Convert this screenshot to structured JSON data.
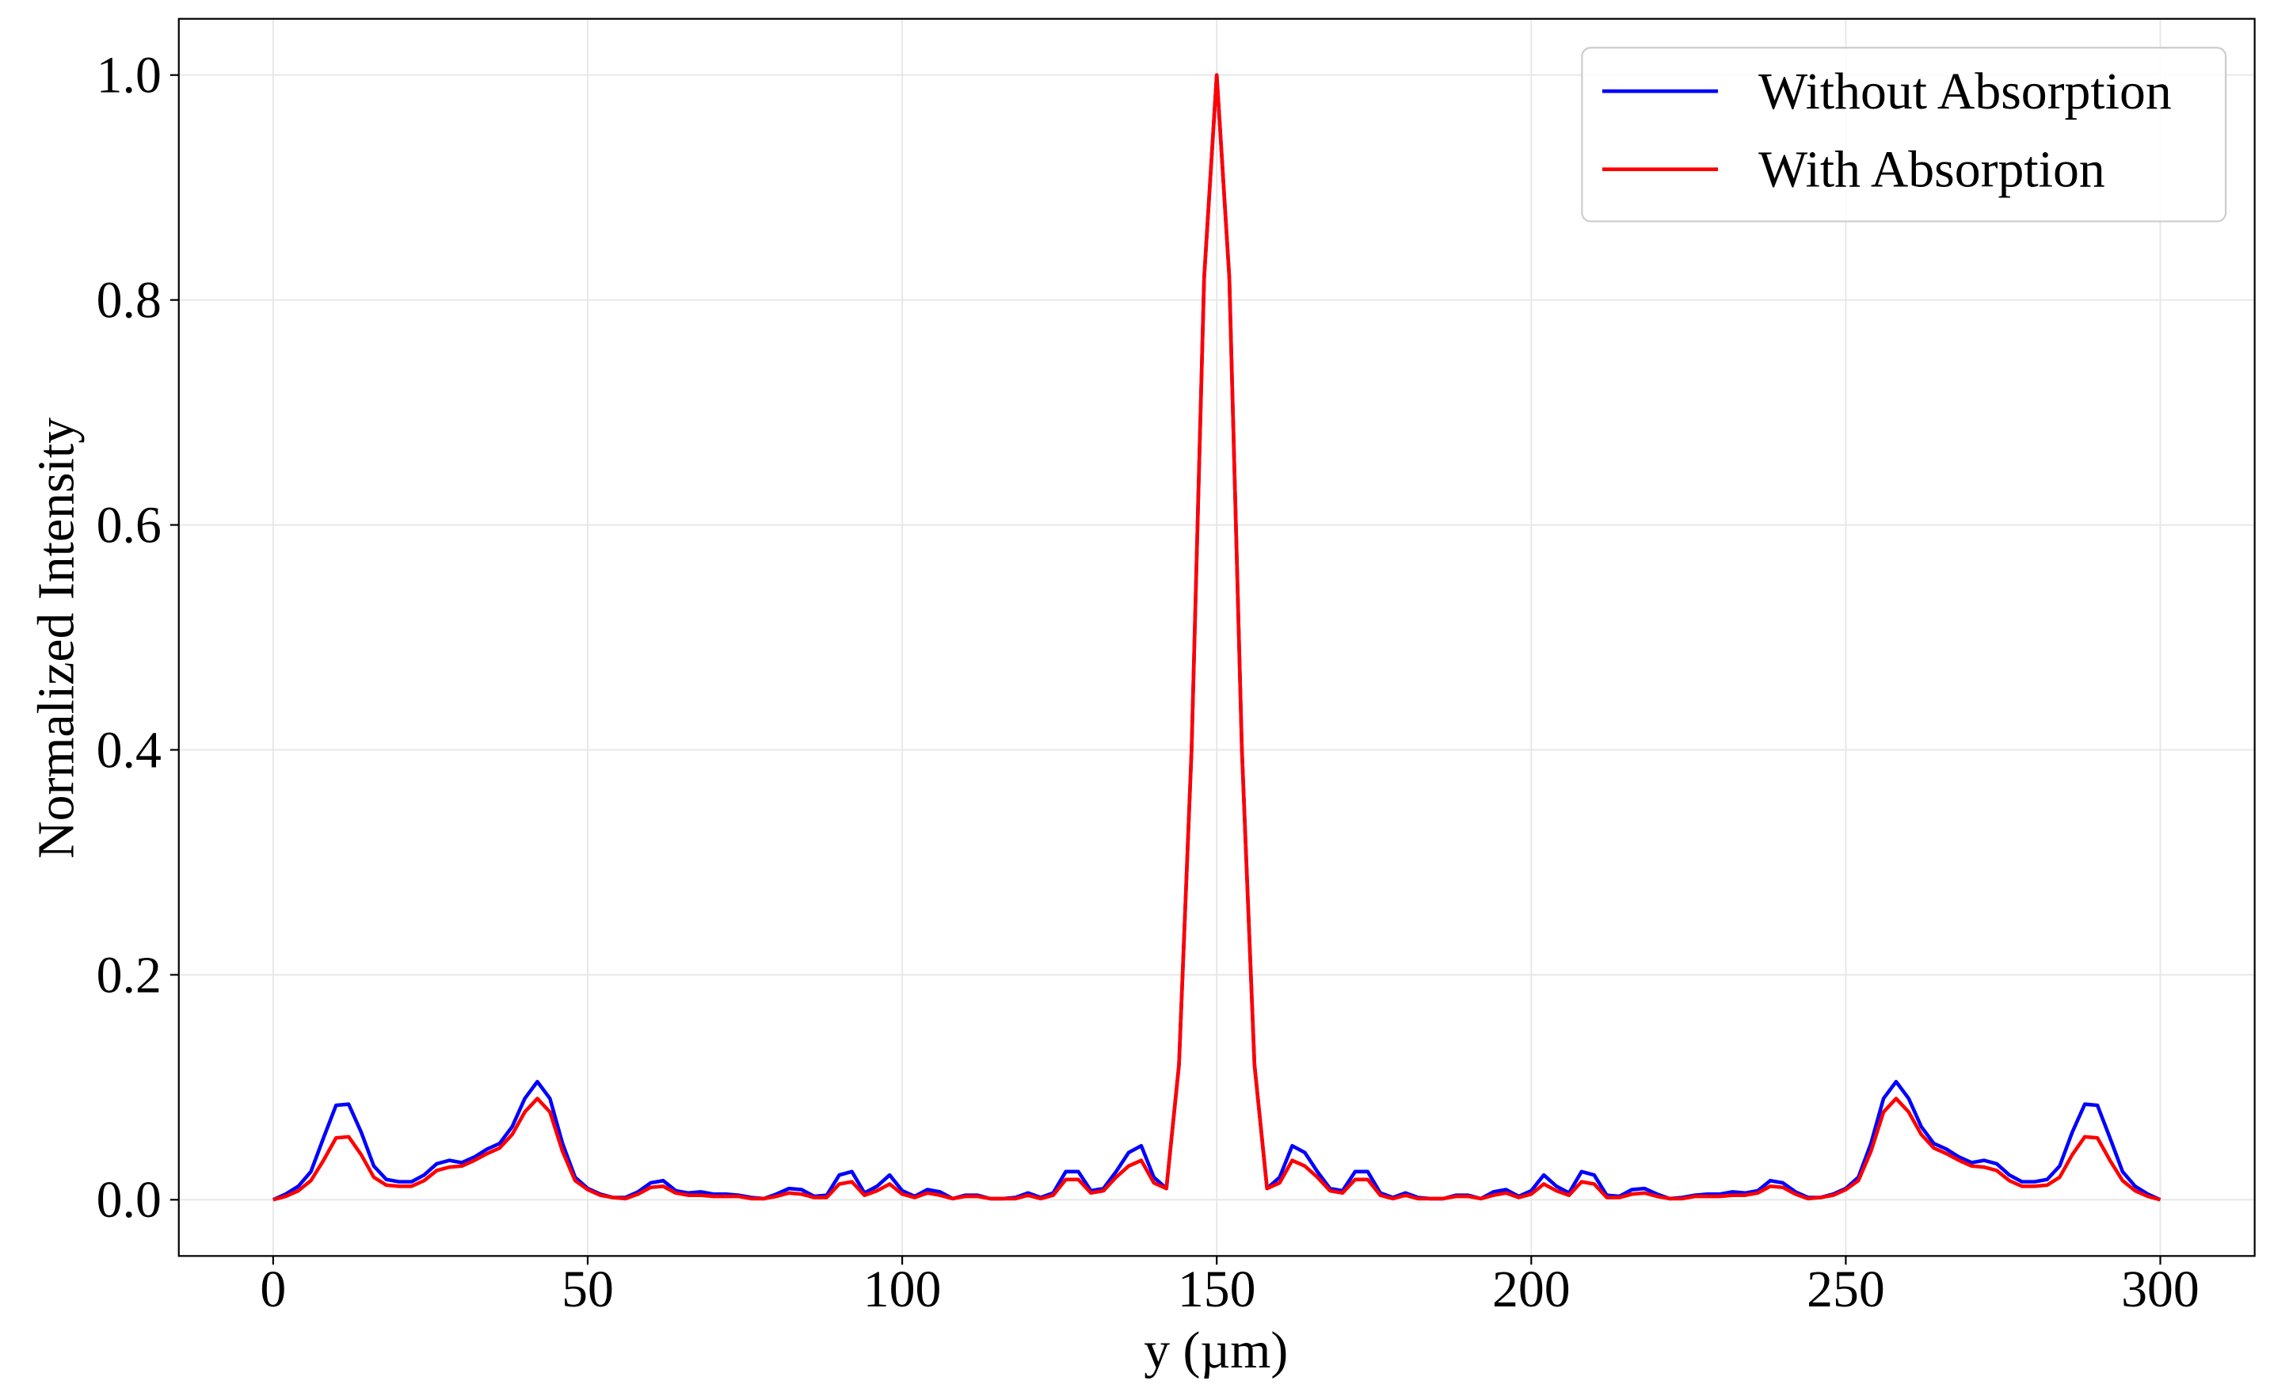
{
  "chart_data": {
    "type": "line",
    "xlabel": "y (µm)",
    "ylabel": "Normalized Intensity",
    "x": [
      0,
      2,
      4,
      6,
      8,
      10,
      12,
      14,
      16,
      18,
      20,
      22,
      24,
      26,
      28,
      30,
      32,
      34,
      36,
      38,
      40,
      42,
      44,
      46,
      48,
      50,
      52,
      54,
      56,
      58,
      60,
      62,
      64,
      66,
      68,
      70,
      72,
      74,
      76,
      78,
      80,
      82,
      84,
      86,
      88,
      90,
      92,
      94,
      96,
      98,
      100,
      102,
      104,
      106,
      108,
      110,
      112,
      114,
      116,
      118,
      120,
      122,
      124,
      126,
      128,
      130,
      132,
      134,
      136,
      138,
      140,
      142,
      144,
      146,
      148,
      150,
      152,
      154,
      156,
      158,
      160,
      162,
      164,
      166,
      168,
      170,
      172,
      174,
      176,
      178,
      180,
      182,
      184,
      186,
      188,
      190,
      192,
      194,
      196,
      198,
      200,
      202,
      204,
      206,
      208,
      210,
      212,
      214,
      216,
      218,
      220,
      222,
      224,
      226,
      228,
      230,
      232,
      234,
      236,
      238,
      240,
      242,
      244,
      246,
      248,
      250,
      252,
      254,
      256,
      258,
      260,
      262,
      264,
      266,
      268,
      270,
      272,
      274,
      276,
      278,
      280,
      282,
      284,
      286,
      288,
      290,
      292,
      294,
      296,
      298,
      300
    ],
    "series": [
      {
        "name": "Without Absorption",
        "color": "#0000ff",
        "values": [
          0,
          0.005,
          0.012,
          0.025,
          0.055,
          0.084,
          0.085,
          0.06,
          0.03,
          0.018,
          0.016,
          0.016,
          0.022,
          0.032,
          0.035,
          0.033,
          0.038,
          0.045,
          0.05,
          0.065,
          0.09,
          0.105,
          0.09,
          0.05,
          0.02,
          0.01,
          0.005,
          0.002,
          0.002,
          0.007,
          0.015,
          0.017,
          0.008,
          0.006,
          0.007,
          0.005,
          0.005,
          0.004,
          0.002,
          0.001,
          0.005,
          0.01,
          0.009,
          0.003,
          0.004,
          0.022,
          0.025,
          0.006,
          0.012,
          0.022,
          0.008,
          0.003,
          0.009,
          0.007,
          0.001,
          0.004,
          0.004,
          0.001,
          0.001,
          0.002,
          0.006,
          0.002,
          0.006,
          0.025,
          0.025,
          0.008,
          0.01,
          0.025,
          0.042,
          0.048,
          0.02,
          0.01,
          0.12,
          0.4,
          0.82,
          1.0,
          0.82,
          0.4,
          0.12,
          0.01,
          0.02,
          0.048,
          0.042,
          0.025,
          0.01,
          0.008,
          0.025,
          0.025,
          0.006,
          0.002,
          0.006,
          0.002,
          0.001,
          0.001,
          0.004,
          0.004,
          0.001,
          0.007,
          0.009,
          0.003,
          0.008,
          0.022,
          0.012,
          0.006,
          0.025,
          0.022,
          0.004,
          0.003,
          0.009,
          0.01,
          0.005,
          0.001,
          0.002,
          0.004,
          0.005,
          0.005,
          0.007,
          0.006,
          0.008,
          0.017,
          0.015,
          0.007,
          0.002,
          0.002,
          0.005,
          0.01,
          0.02,
          0.05,
          0.09,
          0.105,
          0.09,
          0.065,
          0.05,
          0.045,
          0.038,
          0.033,
          0.035,
          0.032,
          0.022,
          0.016,
          0.016,
          0.018,
          0.03,
          0.06,
          0.085,
          0.084,
          0.055,
          0.025,
          0.012,
          0.005,
          0
        ]
      },
      {
        "name": "With Absorption",
        "color": "#ff0000",
        "values": [
          0,
          0.003,
          0.008,
          0.017,
          0.035,
          0.055,
          0.056,
          0.04,
          0.02,
          0.013,
          0.012,
          0.012,
          0.017,
          0.026,
          0.029,
          0.03,
          0.035,
          0.041,
          0.046,
          0.058,
          0.078,
          0.09,
          0.078,
          0.043,
          0.017,
          0.009,
          0.004,
          0.002,
          0.001,
          0.005,
          0.011,
          0.012,
          0.006,
          0.004,
          0.004,
          0.003,
          0.003,
          0.003,
          0.001,
          0.001,
          0.003,
          0.006,
          0.005,
          0.002,
          0.002,
          0.014,
          0.016,
          0.004,
          0.008,
          0.014,
          0.005,
          0.002,
          0.006,
          0.004,
          0.001,
          0.003,
          0.003,
          0.001,
          0.001,
          0.001,
          0.004,
          0.001,
          0.004,
          0.018,
          0.018,
          0.006,
          0.008,
          0.02,
          0.03,
          0.035,
          0.015,
          0.01,
          0.12,
          0.4,
          0.82,
          1.0,
          0.82,
          0.4,
          0.12,
          0.01,
          0.015,
          0.035,
          0.03,
          0.02,
          0.008,
          0.006,
          0.018,
          0.018,
          0.004,
          0.001,
          0.004,
          0.001,
          0.001,
          0.001,
          0.003,
          0.003,
          0.001,
          0.004,
          0.006,
          0.002,
          0.005,
          0.014,
          0.008,
          0.004,
          0.016,
          0.014,
          0.002,
          0.002,
          0.005,
          0.006,
          0.003,
          0.001,
          0.001,
          0.003,
          0.003,
          0.003,
          0.004,
          0.004,
          0.006,
          0.012,
          0.011,
          0.005,
          0.001,
          0.002,
          0.004,
          0.009,
          0.017,
          0.043,
          0.078,
          0.09,
          0.078,
          0.058,
          0.046,
          0.041,
          0.035,
          0.03,
          0.029,
          0.026,
          0.017,
          0.012,
          0.012,
          0.013,
          0.02,
          0.04,
          0.056,
          0.055,
          0.035,
          0.017,
          0.008,
          0.003,
          0
        ]
      }
    ],
    "xlim": [
      -15,
      315
    ],
    "xticks": [
      0,
      50,
      100,
      150,
      200,
      250,
      300
    ],
    "ylim": [
      -0.05,
      1.05
    ],
    "yticks": [
      {
        "value": 0,
        "label": "0.0"
      },
      0.2,
      0.4,
      0.6,
      0.8,
      {
        "value": 1,
        "label": "1.0"
      }
    ],
    "grid": true,
    "legend": "upper right"
  }
}
